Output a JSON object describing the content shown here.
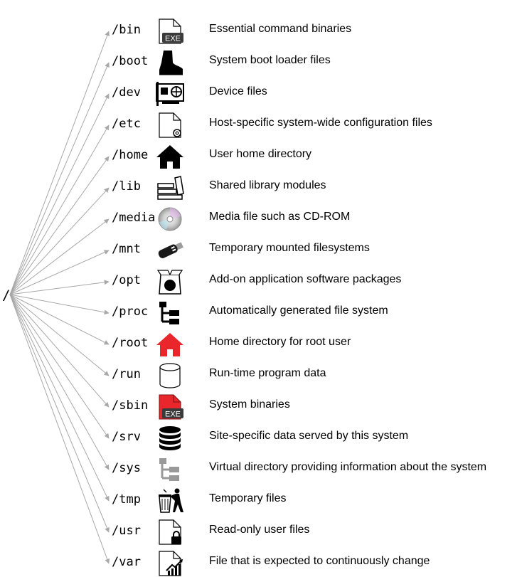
{
  "root": {
    "label": "/"
  },
  "colors": {
    "arrow": "#a8a8a8",
    "red": "#e8262b",
    "black": "#000000",
    "grey": "#999999"
  },
  "directories": [
    {
      "path": "/bin",
      "icon": "exe-file-icon",
      "icon_text": "EXE",
      "description": "Essential command binaries"
    },
    {
      "path": "/boot",
      "icon": "boot-icon",
      "description": "System boot loader files"
    },
    {
      "path": "/dev",
      "icon": "expansion-card-icon",
      "description": "Device files"
    },
    {
      "path": "/etc",
      "icon": "config-file-icon",
      "description": "Host-specific system-wide configuration files"
    },
    {
      "path": "/home",
      "icon": "home-icon",
      "description": "User home directory"
    },
    {
      "path": "/lib",
      "icon": "library-books-icon",
      "description": "Shared library modules"
    },
    {
      "path": "/media",
      "icon": "cd-rom-icon",
      "description": "Media file such as CD-ROM"
    },
    {
      "path": "/mnt",
      "icon": "usb-stick-icon",
      "description": "Temporary mounted filesystems"
    },
    {
      "path": "/opt",
      "icon": "software-package-icon",
      "description": "Add-on application software packages"
    },
    {
      "path": "/proc",
      "icon": "tree-structure-icon",
      "description": "Automatically generated file system"
    },
    {
      "path": "/root",
      "icon": "red-home-icon",
      "description": "Home directory for root user"
    },
    {
      "path": "/run",
      "icon": "cylinder-icon",
      "description": "Run-time program data"
    },
    {
      "path": "/sbin",
      "icon": "red-exe-file-icon",
      "icon_text": "EXE",
      "description": "System binaries"
    },
    {
      "path": "/srv",
      "icon": "database-icon",
      "description": "Site-specific data served by this system"
    },
    {
      "path": "/sys",
      "icon": "grey-tree-structure-icon",
      "description": "Virtual directory providing information about the system"
    },
    {
      "path": "/tmp",
      "icon": "trash-person-icon",
      "description": "Temporary files"
    },
    {
      "path": "/usr",
      "icon": "locked-file-icon",
      "description": "Read-only user files"
    },
    {
      "path": "/var",
      "icon": "chart-file-icon",
      "description": "File that is expected to continuously change"
    }
  ]
}
